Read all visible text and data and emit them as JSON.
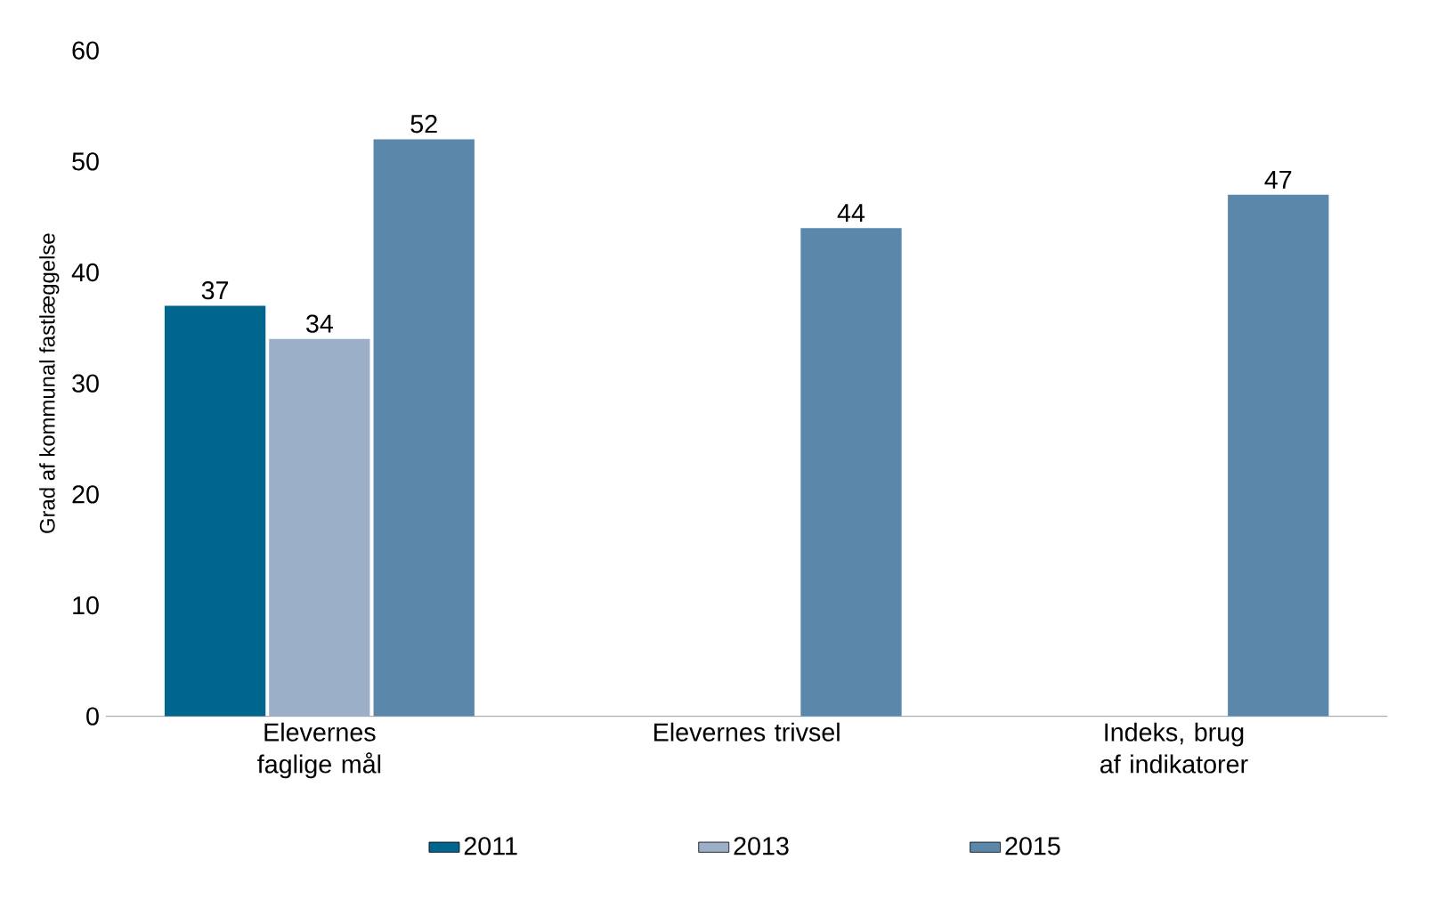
{
  "chart_data": {
    "type": "bar",
    "ylabel": "Grad af kommunal fastlæggelse",
    "categories": [
      "Elevernes faglige mål",
      "Elevernes trivsel",
      "Indeks, brug af indikatorer"
    ],
    "series": [
      {
        "name": "2011",
        "color": "#00668e",
        "values": [
          37,
          null,
          null
        ]
      },
      {
        "name": "2013",
        "color": "#9bb0c8",
        "values": [
          34,
          null,
          null
        ]
      },
      {
        "name": "2015",
        "color": "#5b87aa",
        "values": [
          52,
          44,
          47
        ]
      }
    ],
    "ylim": [
      0,
      60
    ],
    "yticks": [
      0,
      10,
      20,
      30,
      40,
      50,
      60
    ],
    "data_labels": true,
    "legend": "bottom",
    "grid": false
  }
}
